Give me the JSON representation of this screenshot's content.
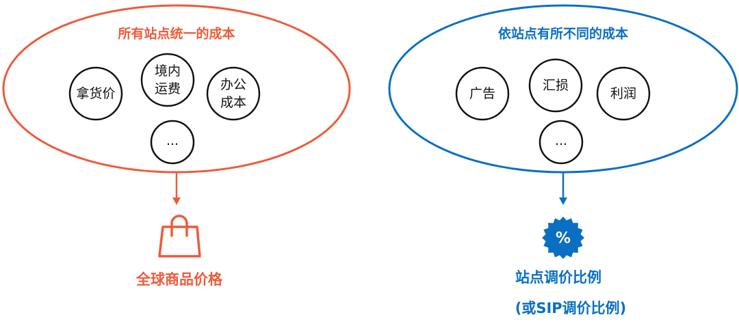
{
  "colors": {
    "left": "#ef5a3a",
    "right": "#0a6fc2",
    "node_border": "#111111"
  },
  "left": {
    "title": "所有站点统一的成本",
    "nodes": [
      {
        "line1": "拿货价",
        "line2": ""
      },
      {
        "line1": "境内",
        "line2": "运费"
      },
      {
        "line1": "办公",
        "line2": "成本"
      },
      {
        "line1": "...",
        "line2": ""
      }
    ],
    "icon": "shopping-bag-icon",
    "result": "全球商品价格"
  },
  "right": {
    "title": "依站点有所不同的成本",
    "nodes": [
      {
        "line1": "广告",
        "line2": ""
      },
      {
        "line1": "汇损",
        "line2": ""
      },
      {
        "line1": "利润",
        "line2": ""
      },
      {
        "line1": "...",
        "line2": ""
      }
    ],
    "icon": "percent-badge-icon",
    "badge_text": "%",
    "result": "站点调价比例",
    "result_sub": "(或SIP调价比例)"
  }
}
